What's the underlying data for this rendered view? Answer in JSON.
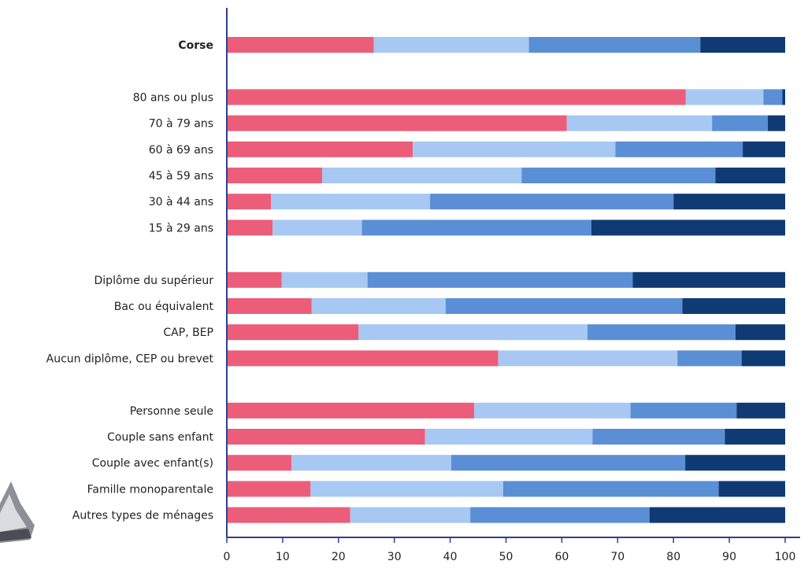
{
  "colors": {
    "series": [
      "#ec5d79",
      "#a7c8f2",
      "#5a8fd6",
      "#0f3a74"
    ],
    "axis": "#2e3f8f",
    "text": "#222222"
  },
  "decoration": {
    "name": "metallic-object-fragment"
  },
  "chart_data": {
    "type": "bar",
    "orientation": "horizontal",
    "stacked": true,
    "xlim": [
      0,
      100
    ],
    "xticks": [
      0,
      10,
      20,
      30,
      40,
      50,
      60,
      70,
      80,
      90,
      100
    ],
    "grid": false,
    "legend": "none",
    "title": "",
    "xlabel": "",
    "ylabel": "",
    "categories": [
      {
        "label": "Corse",
        "bold": true,
        "slot": 0
      },
      {
        "label": "80 ans ou plus",
        "slot": 2
      },
      {
        "label": "70 à 79 ans",
        "slot": 3
      },
      {
        "label": "60 à 69 ans",
        "slot": 4
      },
      {
        "label": "45 à 59 ans",
        "slot": 5
      },
      {
        "label": "30 à 44 ans",
        "slot": 6
      },
      {
        "label": "15 à 29 ans",
        "slot": 7
      },
      {
        "label": "Diplôme du supérieur",
        "slot": 9
      },
      {
        "label": "Bac ou équivalent",
        "slot": 10
      },
      {
        "label": "CAP, BEP",
        "slot": 11
      },
      {
        "label": "Aucun diplôme, CEP ou brevet",
        "slot": 12
      },
      {
        "label": "Personne seule",
        "slot": 14
      },
      {
        "label": "Couple sans enfant",
        "slot": 15
      },
      {
        "label": "Couple avec enfant(s)",
        "slot": 16
      },
      {
        "label": "Famille monoparentale",
        "slot": 17
      },
      {
        "label": "Autres types de ménages",
        "slot": 18
      }
    ],
    "series": [
      {
        "values": [
          26.3,
          82.2,
          60.9,
          33.3,
          17.1,
          7.9,
          8.2,
          9.8,
          15.2,
          23.6,
          48.6,
          44.3,
          35.5,
          11.6,
          15.0,
          22.1
        ]
      },
      {
        "values": [
          27.8,
          13.9,
          26.0,
          36.3,
          35.7,
          28.5,
          16.0,
          15.4,
          24.0,
          41.0,
          32.1,
          28.0,
          30.0,
          28.6,
          34.5,
          21.5
        ]
      },
      {
        "values": [
          30.7,
          3.4,
          10.0,
          22.8,
          34.7,
          43.6,
          41.1,
          47.5,
          42.4,
          26.5,
          11.5,
          19.0,
          23.7,
          41.9,
          38.6,
          32.1
        ]
      },
      {
        "values": [
          15.2,
          0.5,
          3.1,
          7.6,
          12.5,
          20.0,
          34.7,
          27.3,
          18.4,
          8.9,
          7.8,
          8.7,
          10.8,
          17.9,
          11.9,
          24.3
        ]
      }
    ]
  }
}
